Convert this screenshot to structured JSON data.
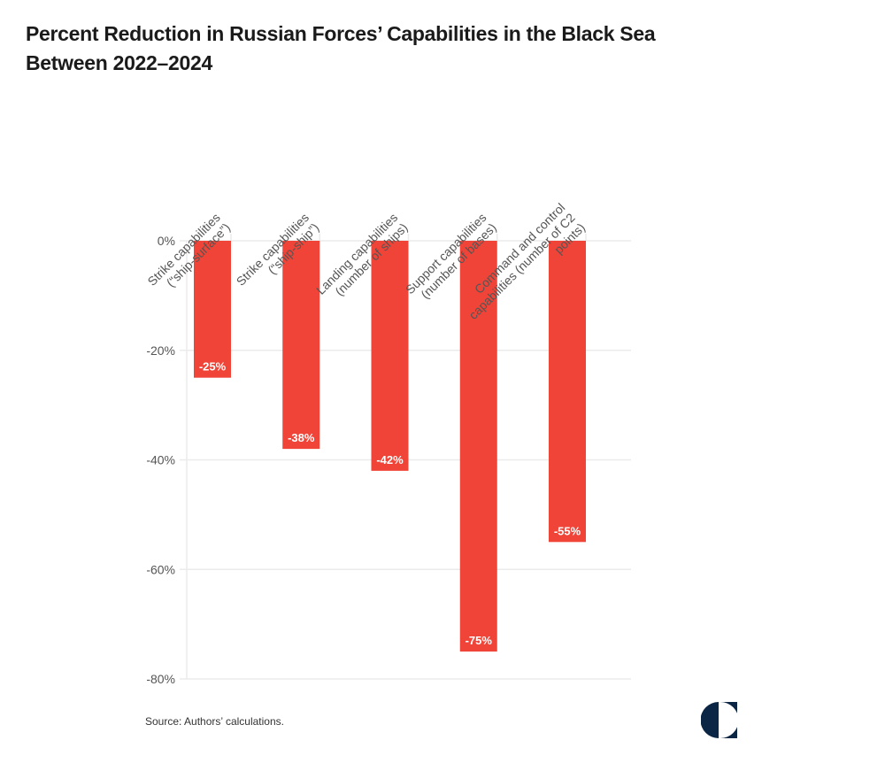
{
  "title_lines": [
    "Percent Reduction in Russian Forces’ Capabilities in the Black Sea",
    "Between 2022–2024"
  ],
  "source": "Source: Authors’ calculations.",
  "logo": "publisher-logo-icon",
  "colors": {
    "bar": "#f04438",
    "grid": "#ebebeb",
    "text": "#555555",
    "logo": "#0b2545"
  },
  "chart_data": {
    "type": "bar",
    "title": "Percent Reduction in Russian Forces’ Capabilities in the Black Sea Between 2022–2024",
    "xlabel": "",
    "ylabel": "",
    "categories": [
      [
        "Strike capabilities",
        "(“ship-surface”)"
      ],
      [
        "Strike capabilities",
        "(“ship-ship”)"
      ],
      [
        "Landing capabilities",
        "(number of ships)"
      ],
      [
        "Support capabilities",
        "(number of bases)"
      ],
      [
        "Command and control",
        "capabilities (number of C2",
        "points)"
      ]
    ],
    "values": [
      -25,
      -38,
      -42,
      -75,
      -55
    ],
    "data_labels": [
      "-25%",
      "-38%",
      "-42%",
      "-75%",
      "-55%"
    ],
    "ylim": [
      -80,
      0
    ],
    "yticks": [
      0,
      -20,
      -40,
      -60,
      -80
    ],
    "ytick_labels": [
      "0%",
      "-20%",
      "-40%",
      "-60%",
      "-80%"
    ],
    "grid": true,
    "legend": "none"
  }
}
